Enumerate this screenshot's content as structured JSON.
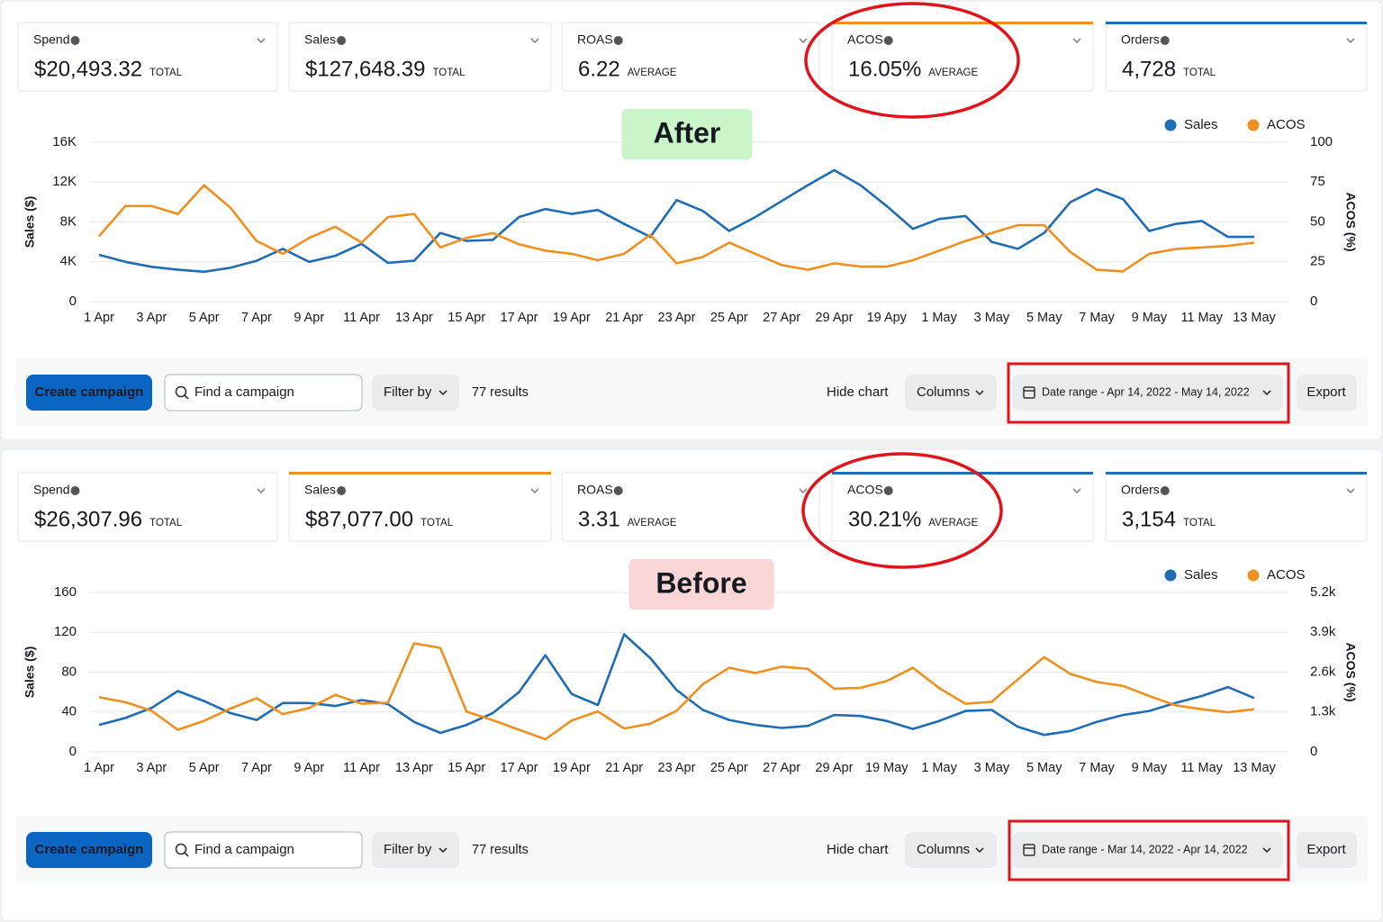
{
  "panels": [
    {
      "metrics": [
        {
          "label": "Spend",
          "value": "$20,493.32",
          "unit": "TOTAL"
        },
        {
          "label": "Sales",
          "value": "$127,648.39",
          "unit": "TOTAL"
        },
        {
          "label": "ROAS",
          "value": "6.22",
          "unit": "AVERAGE"
        },
        {
          "label": "ACOS",
          "value": "16.05%",
          "unit": "AVERAGE",
          "accent": "#f0901e"
        },
        {
          "label": "Orders",
          "value": "4,728",
          "unit": "TOTAL",
          "accent": "#1f6db5"
        }
      ],
      "toolbar": {
        "create": "Create campaign",
        "search": "Find a campaign",
        "filter": "Filter by",
        "results": "77 results",
        "hide_chart": "Hide chart",
        "columns": "Columns",
        "date_range": "Date range - Apr 14, 2022 - May 14, 2022",
        "export": "Export"
      }
    },
    {
      "metrics": [
        {
          "label": "Spend",
          "value": "$26,307.96",
          "unit": "TOTAL"
        },
        {
          "label": "Sales",
          "value": "$87,077.00",
          "unit": "TOTAL",
          "accent": "#f0901e"
        },
        {
          "label": "ROAS",
          "value": "3.31",
          "unit": "AVERAGE"
        },
        {
          "label": "ACOS",
          "value": "30.21%",
          "unit": "AVERAGE",
          "accent": "#1f6db5"
        },
        {
          "label": "Orders",
          "value": "3,154",
          "unit": "TOTAL",
          "accent": "#1f6db5"
        }
      ],
      "toolbar": {
        "create": "Create campaign",
        "search": "Find a campaign",
        "filter": "Filter by",
        "results": "77 results",
        "hide_chart": "Hide chart",
        "columns": "Columns",
        "date_range": "Date range - Mar 14, 2022 - Apr 14, 2022",
        "export": "Export"
      }
    }
  ],
  "chart_data": [
    {
      "type": "line",
      "annotation": "After",
      "ylabel": "Sales ($)",
      "y2label": "ACOS (%)",
      "categories": [
        "1 Apr",
        null,
        "3 Apr",
        null,
        "5 Apr",
        null,
        "7 Apr",
        null,
        "9 Apr",
        null,
        "11 Apr",
        null,
        "13 Apr",
        null,
        "15 Apr",
        null,
        "17 Apr",
        null,
        "19 Apr",
        null,
        "21 Apr",
        null,
        "23 Apr",
        null,
        "25 Apr",
        null,
        "27 Apr",
        null,
        "29 Apr",
        null,
        "19 Apy",
        null,
        "1 May",
        null,
        "3 May",
        null,
        "5 May",
        null,
        "7 May",
        null,
        "9 May",
        null,
        "11 May",
        null,
        "13 May"
      ],
      "series": [
        {
          "name": "Sales",
          "color": "#1f6db5",
          "values": [
            4700,
            4000,
            3500,
            3200,
            3000,
            3400,
            4100,
            5300,
            4000,
            4600,
            5800,
            3900,
            4100,
            6900,
            6100,
            6200,
            8500,
            9300,
            8800,
            9200,
            7800,
            6500,
            10200,
            9100,
            7100,
            8500,
            10100,
            11700,
            13200,
            11700,
            9600,
            7300,
            8300,
            8600,
            6000,
            5300,
            6900,
            10000,
            11300,
            10300,
            7100,
            7800,
            8100,
            6500,
            6500
          ]
        },
        {
          "name": "ACOS",
          "color": "#f0901e",
          "axis": "y2",
          "values": [
            41,
            60,
            60,
            55,
            73,
            59,
            38,
            30,
            40,
            47,
            37,
            53,
            55,
            34,
            40,
            43,
            36,
            32,
            30,
            26,
            30,
            42,
            24,
            28,
            37,
            30,
            23,
            20,
            24,
            22,
            22,
            26,
            32,
            38,
            43,
            48,
            48,
            31,
            20,
            19,
            30,
            33,
            34,
            35,
            37
          ]
        }
      ],
      "ylim": [
        0,
        16000
      ],
      "yticks": [
        0,
        {
          "value": 4000,
          "label": "4K"
        },
        {
          "value": 8000,
          "label": "8K"
        },
        {
          "value": 12000,
          "label": "12K"
        },
        {
          "value": 16000,
          "label": "16K"
        }
      ],
      "y2lim": [
        0,
        100
      ],
      "y2ticks": [
        0,
        25,
        50,
        75,
        100
      ],
      "grid": true,
      "legend": "top-right"
    },
    {
      "type": "line",
      "annotation": "Before",
      "ylabel": "Sales ($)",
      "y2label": "ACOS (%)",
      "categories": [
        "1 Apr",
        null,
        "3 Apr",
        null,
        "5 Apr",
        null,
        "7 Apr",
        null,
        "9 Apr",
        null,
        "11 Apr",
        null,
        "13 Apr",
        null,
        "15 Apr",
        null,
        "17 Apr",
        null,
        "19 Apr",
        null,
        "21 Apr",
        null,
        "23 Apr",
        null,
        "25 Apr",
        null,
        "27 Apr",
        null,
        "29 Apr",
        null,
        "19 May",
        null,
        "1 May",
        null,
        "3 May",
        null,
        "5 May",
        null,
        "7 May",
        null,
        "9 May",
        null,
        "11 May",
        null,
        "13 May"
      ],
      "series": [
        {
          "name": "Sales",
          "color": "#1f6db5",
          "values": [
            27,
            34,
            44,
            61,
            51,
            39,
            32,
            49,
            49,
            46,
            52,
            48,
            30,
            19,
            27,
            39,
            60,
            97,
            58,
            47,
            118,
            94,
            62,
            42,
            32,
            27,
            24,
            26,
            37,
            36,
            31,
            23,
            31,
            41,
            42,
            25,
            17,
            21,
            30,
            37,
            41,
            49,
            56,
            65,
            54
          ]
        },
        {
          "name": "ACOS",
          "color": "#f0901e",
          "axis": "y2",
          "values": [
            1780,
            1620,
            1340,
            720,
            1010,
            1410,
            1750,
            1230,
            1430,
            1860,
            1570,
            1600,
            3540,
            3390,
            1310,
            1030,
            720,
            410,
            1020,
            1320,
            760,
            920,
            1340,
            2210,
            2740,
            2570,
            2780,
            2710,
            2060,
            2090,
            2310,
            2740,
            2080,
            1570,
            1630,
            2370,
            3090,
            2540,
            2280,
            2150,
            1820,
            1520,
            1390,
            1290,
            1390
          ]
        }
      ],
      "ylim": [
        0,
        160
      ],
      "yticks": [
        0,
        40,
        80,
        120,
        160
      ],
      "y2lim": [
        0,
        5200
      ],
      "y2ticks": [
        0,
        {
          "value": 1300,
          "label": "1.3k"
        },
        {
          "value": 2600,
          "label": "2.6k"
        },
        {
          "value": 3900,
          "label": "3.9k"
        },
        {
          "value": 5200,
          "label": "5.2k"
        }
      ],
      "grid": true,
      "legend": "top-right"
    }
  ]
}
